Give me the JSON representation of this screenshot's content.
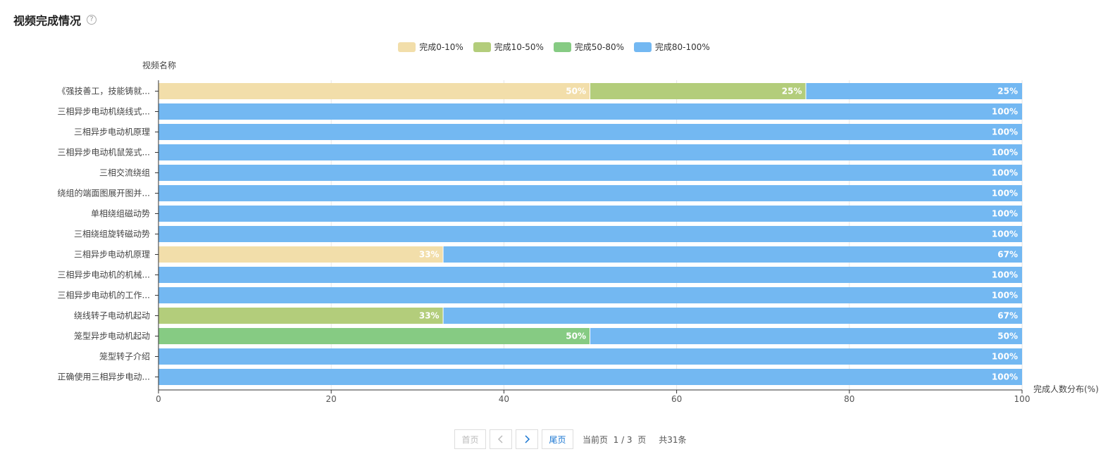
{
  "header": {
    "title": "视频完成情况",
    "help_icon": "help-circle-icon"
  },
  "legend": [
    {
      "label": "完成0-10%",
      "color": "#f2deaa"
    },
    {
      "label": "完成10-50%",
      "color": "#b3cd7b"
    },
    {
      "label": "完成50-80%",
      "color": "#86cb83"
    },
    {
      "label": "完成80-100%",
      "color": "#73b8f2"
    }
  ],
  "chart_data": {
    "type": "bar",
    "orientation": "horizontal",
    "stacked": true,
    "ylabel": "视频名称",
    "xlabel": "完成人数分布(%)",
    "xlim": [
      0,
      100
    ],
    "xticks": [
      "0",
      "20",
      "40",
      "60",
      "80",
      "100"
    ],
    "categories": [
      "《强技善工，技能铸就...",
      "三相异步电动机绕线式...",
      "三相异步电动机原理",
      "三相异步电动机鼠笼式...",
      "三相交流绕组",
      "绕组的端面图展开图并...",
      "单相绕组磁动势",
      "三相绕组旋转磁动势",
      "三相异步电动机原理",
      "三相异步电动机的机械...",
      "三相异步电动机的工作...",
      "绕线转子电动机起动",
      "笼型异步电动机起动",
      "笼型转子介绍",
      "正确使用三相异步电动..."
    ],
    "series": [
      {
        "name": "完成0-10%",
        "values": [
          50,
          0,
          0,
          0,
          0,
          0,
          0,
          0,
          33,
          0,
          0,
          0,
          0,
          0,
          0
        ]
      },
      {
        "name": "完成10-50%",
        "values": [
          25,
          0,
          0,
          0,
          0,
          0,
          0,
          0,
          0,
          0,
          0,
          33,
          0,
          0,
          0
        ]
      },
      {
        "name": "完成50-80%",
        "values": [
          0,
          0,
          0,
          0,
          0,
          0,
          0,
          0,
          0,
          0,
          0,
          0,
          50,
          0,
          0
        ]
      },
      {
        "name": "完成80-100%",
        "values": [
          25,
          100,
          100,
          100,
          100,
          100,
          100,
          100,
          67,
          100,
          100,
          67,
          50,
          100,
          100
        ]
      }
    ],
    "data_labels": [
      [
        "50%",
        "25%",
        "",
        "25%"
      ],
      [
        "",
        "",
        "",
        "100%"
      ],
      [
        "",
        "",
        "",
        "100%"
      ],
      [
        "",
        "",
        "",
        "100%"
      ],
      [
        "",
        "",
        "",
        "100%"
      ],
      [
        "",
        "",
        "",
        "100%"
      ],
      [
        "",
        "",
        "",
        "100%"
      ],
      [
        "",
        "",
        "",
        "100%"
      ],
      [
        "33%",
        "",
        "",
        "67%"
      ],
      [
        "",
        "",
        "",
        "100%"
      ],
      [
        "",
        "",
        "",
        "100%"
      ],
      [
        "",
        "33%",
        "",
        "67%"
      ],
      [
        "",
        "",
        "50%",
        "50%"
      ],
      [
        "",
        "",
        "",
        "100%"
      ],
      [
        "",
        "",
        "",
        "100%"
      ]
    ]
  },
  "pagination": {
    "first": "首页",
    "prev_icon": "chevron-left-icon",
    "next_icon": "chevron-right-icon",
    "last": "尾页",
    "info": "当前页  1 / 3  页",
    "total": "共31条"
  }
}
